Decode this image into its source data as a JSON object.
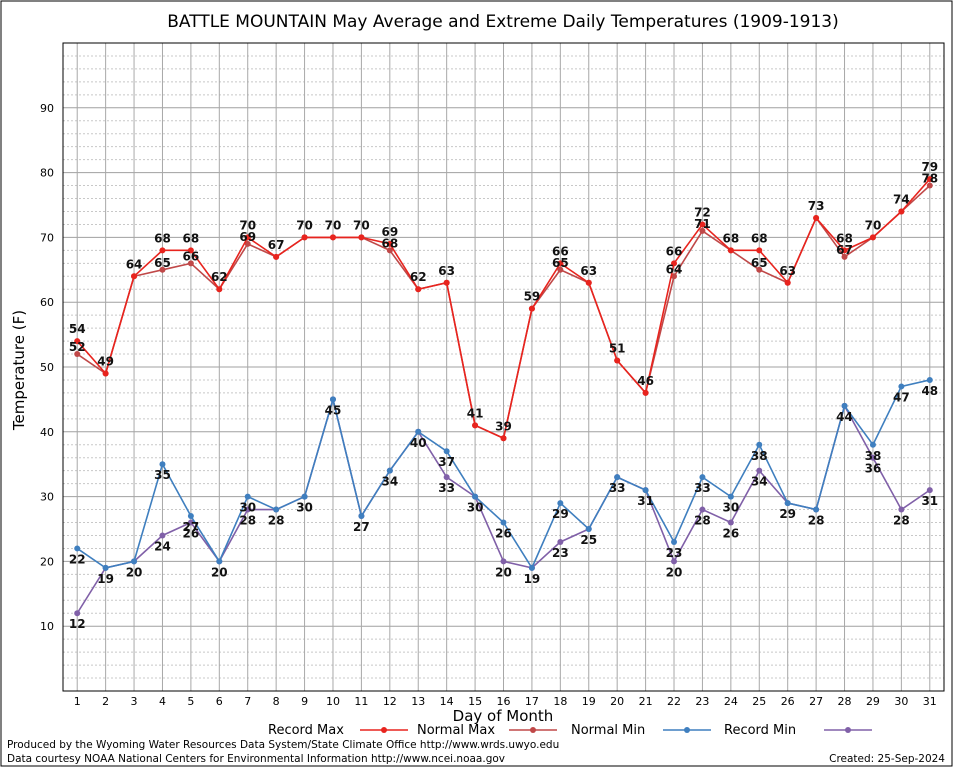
{
  "chart_data": {
    "type": "line",
    "title": "BATTLE MOUNTAIN May Average and Extreme Daily Temperatures (1909-1913)",
    "xlabel": "Day of Month",
    "ylabel": "Temperature (F)",
    "x": [
      1,
      2,
      3,
      4,
      5,
      6,
      7,
      8,
      9,
      10,
      11,
      12,
      13,
      14,
      15,
      16,
      17,
      18,
      19,
      20,
      21,
      22,
      23,
      24,
      25,
      26,
      27,
      28,
      29,
      30,
      31
    ],
    "xlim": [
      0.5,
      31.5
    ],
    "ylim": [
      0,
      100
    ],
    "yticks": [
      10,
      20,
      30,
      40,
      50,
      60,
      70,
      80,
      90
    ],
    "grid": true,
    "legend_position": "bottom",
    "series": [
      {
        "name": "Record Max",
        "color": "#e8241e",
        "values": [
          54,
          49,
          64,
          68,
          68,
          62,
          70,
          67,
          70,
          70,
          70,
          69,
          62,
          63,
          41,
          39,
          59,
          66,
          63,
          51,
          46,
          66,
          72,
          68,
          68,
          63,
          73,
          68,
          70,
          74,
          79
        ]
      },
      {
        "name": "Normal Max",
        "color": "#c04848",
        "values": [
          52,
          49,
          64,
          65,
          66,
          62,
          69,
          67,
          70,
          70,
          70,
          68,
          62,
          63,
          41,
          39,
          59,
          65,
          63,
          51,
          46,
          64,
          71,
          68,
          65,
          63,
          73,
          67,
          70,
          74,
          78
        ]
      },
      {
        "name": "Normal Min",
        "color": "#3f7fbf",
        "values": [
          22,
          19,
          20,
          35,
          27,
          20,
          30,
          28,
          30,
          45,
          27,
          34,
          40,
          37,
          30,
          26,
          19,
          29,
          25,
          33,
          31,
          23,
          33,
          30,
          38,
          29,
          28,
          44,
          38,
          47,
          48
        ]
      },
      {
        "name": "Record Min",
        "color": "#8060a8",
        "values": [
          12,
          19,
          20,
          24,
          26,
          20,
          28,
          28,
          30,
          45,
          27,
          34,
          40,
          33,
          30,
          20,
          19,
          23,
          25,
          33,
          31,
          20,
          28,
          26,
          34,
          29,
          28,
          44,
          36,
          28,
          31
        ]
      }
    ]
  },
  "footer": {
    "line1": "Produced by the Wyoming Water Resources Data System/State Climate Office http://www.wrds.uwyo.edu",
    "line2": "Data courtesy NOAA National Centers for Environmental Information http://www.ncei.noaa.gov",
    "created": "Created:  25-Sep-2024"
  }
}
